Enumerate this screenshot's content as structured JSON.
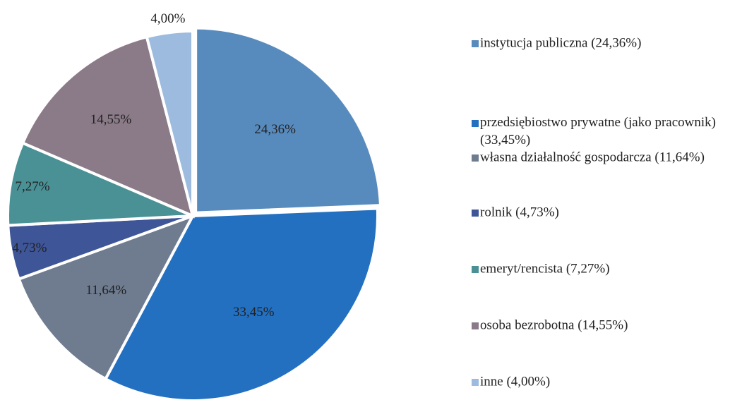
{
  "chart_data": {
    "type": "pie",
    "categories": [
      "instytucja publiczna (24,36%)",
      "przedsiębiostwo prywatne (jako pracownik) (33,45%)",
      "własna działalność gospodarcza (11,64%)",
      "rolnik (4,73%)",
      "emeryt/rencista (7,27%)",
      "osoba bezrobotna (14,55%)",
      "inne (4,00%)"
    ],
    "values": [
      24.36,
      33.45,
      11.64,
      4.73,
      7.27,
      14.55,
      4.0
    ],
    "value_labels": [
      "24,36%",
      "33,45%",
      "11,64%",
      "4,73%",
      "7,27%",
      "14,55%",
      "4,00%"
    ],
    "colors": [
      "#588bbd",
      "#2470c0",
      "#6f7c90",
      "#3e5597",
      "#4a9196",
      "#8b7b88",
      "#9dbbdf"
    ],
    "legend": "right"
  }
}
